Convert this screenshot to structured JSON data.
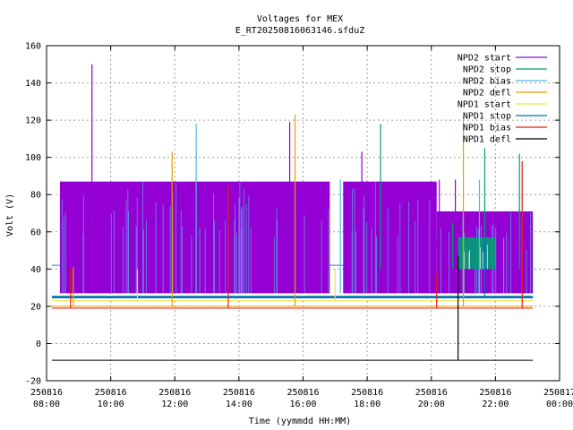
{
  "chart_data": {
    "type": "line",
    "title": "Voltages for MEX",
    "subtitle": "E_RT20250816063146.sfduZ",
    "xlabel": "Time (yymmdd HH:MM)",
    "ylabel": "Volt (V)",
    "grid": true,
    "legend_position": "top-right",
    "xlim": [
      "250816 08:00",
      "250817 00:00"
    ],
    "ylim": [
      -20,
      160
    ],
    "y_ticks": [
      -20,
      0,
      20,
      40,
      60,
      80,
      100,
      120,
      140,
      160
    ],
    "x_ticks": [
      {
        "date": "250816",
        "time": "08:00"
      },
      {
        "date": "250816",
        "time": "10:00"
      },
      {
        "date": "250816",
        "time": "12:00"
      },
      {
        "date": "250816",
        "time": "14:00"
      },
      {
        "date": "250816",
        "time": "16:00"
      },
      {
        "date": "250816",
        "time": "18:00"
      },
      {
        "date": "250816",
        "time": "20:00"
      },
      {
        "date": "250816",
        "time": "22:00"
      },
      {
        "date": "250817",
        "time": "00:00"
      }
    ],
    "series": [
      {
        "name": "NPD2 start",
        "color": "#9400d3",
        "bands": [
          {
            "from": "08:25",
            "to": "16:50",
            "low": 27,
            "high": 87
          },
          {
            "from": "17:15",
            "to": "20:10",
            "low": 27,
            "high": 87
          },
          {
            "from": "20:10",
            "to": "23:10",
            "low": 27,
            "high": 71
          }
        ],
        "spikes": [
          {
            "t": "09:25",
            "v": 150
          },
          {
            "t": "15:35",
            "v": 119
          },
          {
            "t": "17:50",
            "v": 103
          },
          {
            "t": "20:15",
            "v": 88
          },
          {
            "t": "20:45",
            "v": 88
          }
        ]
      },
      {
        "name": "NPD2 stop",
        "color": "#009e73",
        "bands": [
          {
            "from": "20:50",
            "to": "22:00",
            "low": 40,
            "high": 57
          }
        ],
        "spikes": [
          {
            "t": "18:25",
            "v": 118
          },
          {
            "t": "20:40",
            "v": 65
          },
          {
            "t": "21:40",
            "v": 105
          },
          {
            "t": "22:45",
            "v": 102
          }
        ]
      },
      {
        "name": "NPD2 bias",
        "color": "#56b4e9",
        "bands": [
          {
            "from": "19:00",
            "to": "23:10",
            "low": 27,
            "high": 57
          }
        ],
        "spikes": [
          {
            "t": "12:40",
            "v": 118
          },
          {
            "t": "17:10",
            "v": 88
          },
          {
            "t": "21:30",
            "v": 88
          }
        ]
      },
      {
        "name": "NPD2 defl",
        "color": "#e69f00",
        "level": 20,
        "spikes": [
          {
            "t": "08:50",
            "v": 41
          },
          {
            "t": "11:55",
            "v": 103
          },
          {
            "t": "15:45",
            "v": 123
          },
          {
            "t": "21:00",
            "v": 122
          }
        ]
      },
      {
        "name": "NPD1 start",
        "color": "#f0e442",
        "level": 23,
        "spikes": [
          {
            "t": "10:50",
            "v": 40
          },
          {
            "t": "17:00",
            "v": 40
          }
        ]
      },
      {
        "name": "NPD1 stop",
        "color": "#0072b2",
        "level": 24.5,
        "spikes": [
          {
            "t": "21:40",
            "v": 57
          }
        ]
      },
      {
        "name": "NPD1 bias",
        "color": "#e51e10",
        "level": 19,
        "spikes": [
          {
            "t": "08:45",
            "v": 41
          },
          {
            "t": "13:40",
            "v": 85
          },
          {
            "t": "20:10",
            "v": 38
          },
          {
            "t": "22:50",
            "v": 98
          }
        ]
      },
      {
        "name": "NPD1 defl",
        "color": "#000000",
        "level": -9,
        "spikes": [
          {
            "t": "20:50",
            "v": 47,
            "down": -9
          }
        ]
      }
    ],
    "extra_levels": [
      {
        "color": "#56b4e9",
        "from": "08:10",
        "to": "23:10",
        "v": 42
      },
      {
        "color": "#0072b2",
        "from": "08:10",
        "to": "23:10",
        "v": 25
      }
    ]
  }
}
